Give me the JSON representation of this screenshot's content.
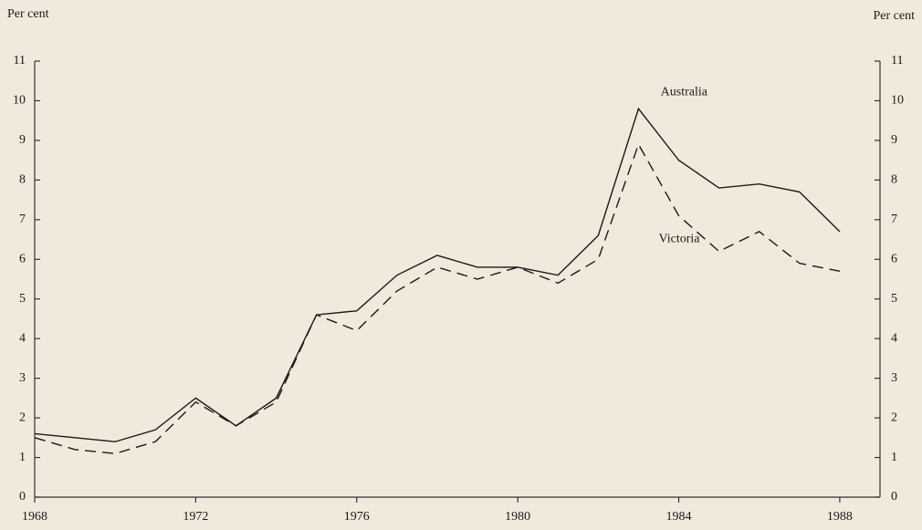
{
  "chart_data": {
    "type": "line",
    "ylabel": "Per cent",
    "y2label": "Per cent",
    "x": [
      1968,
      1969,
      1970,
      1971,
      1972,
      1973,
      1974,
      1975,
      1976,
      1977,
      1978,
      1979,
      1980,
      1981,
      1982,
      1983,
      1984,
      1985,
      1986,
      1987,
      1988
    ],
    "series": [
      {
        "name": "Australia",
        "color": "#1a1a1a",
        "dash": false,
        "values": [
          1.6,
          1.5,
          1.4,
          1.7,
          2.5,
          1.8,
          2.5,
          4.6,
          4.7,
          5.6,
          6.1,
          5.8,
          5.8,
          5.6,
          6.6,
          9.8,
          8.5,
          7.8,
          7.9,
          7.7,
          6.7
        ]
      },
      {
        "name": "Victoria",
        "color": "#1a1a1a",
        "dash": true,
        "values": [
          1.5,
          1.2,
          1.1,
          1.4,
          2.4,
          1.8,
          2.4,
          4.6,
          4.2,
          5.2,
          5.8,
          5.5,
          5.8,
          5.4,
          6.0,
          8.9,
          7.1,
          6.2,
          6.7,
          5.9,
          5.7
        ]
      }
    ],
    "xlim": [
      1968,
      1989
    ],
    "xticks": [
      1968,
      1972,
      1976,
      1980,
      1984,
      1988
    ],
    "ylim": [
      0,
      11
    ],
    "yticks": [
      0,
      1,
      2,
      3,
      4,
      5,
      6,
      7,
      8,
      9,
      10,
      11
    ],
    "y2lim": [
      0,
      11
    ],
    "y2ticks": [
      0,
      1,
      2,
      3,
      4,
      5,
      6,
      7,
      8,
      9,
      10,
      11
    ],
    "grid": false
  }
}
